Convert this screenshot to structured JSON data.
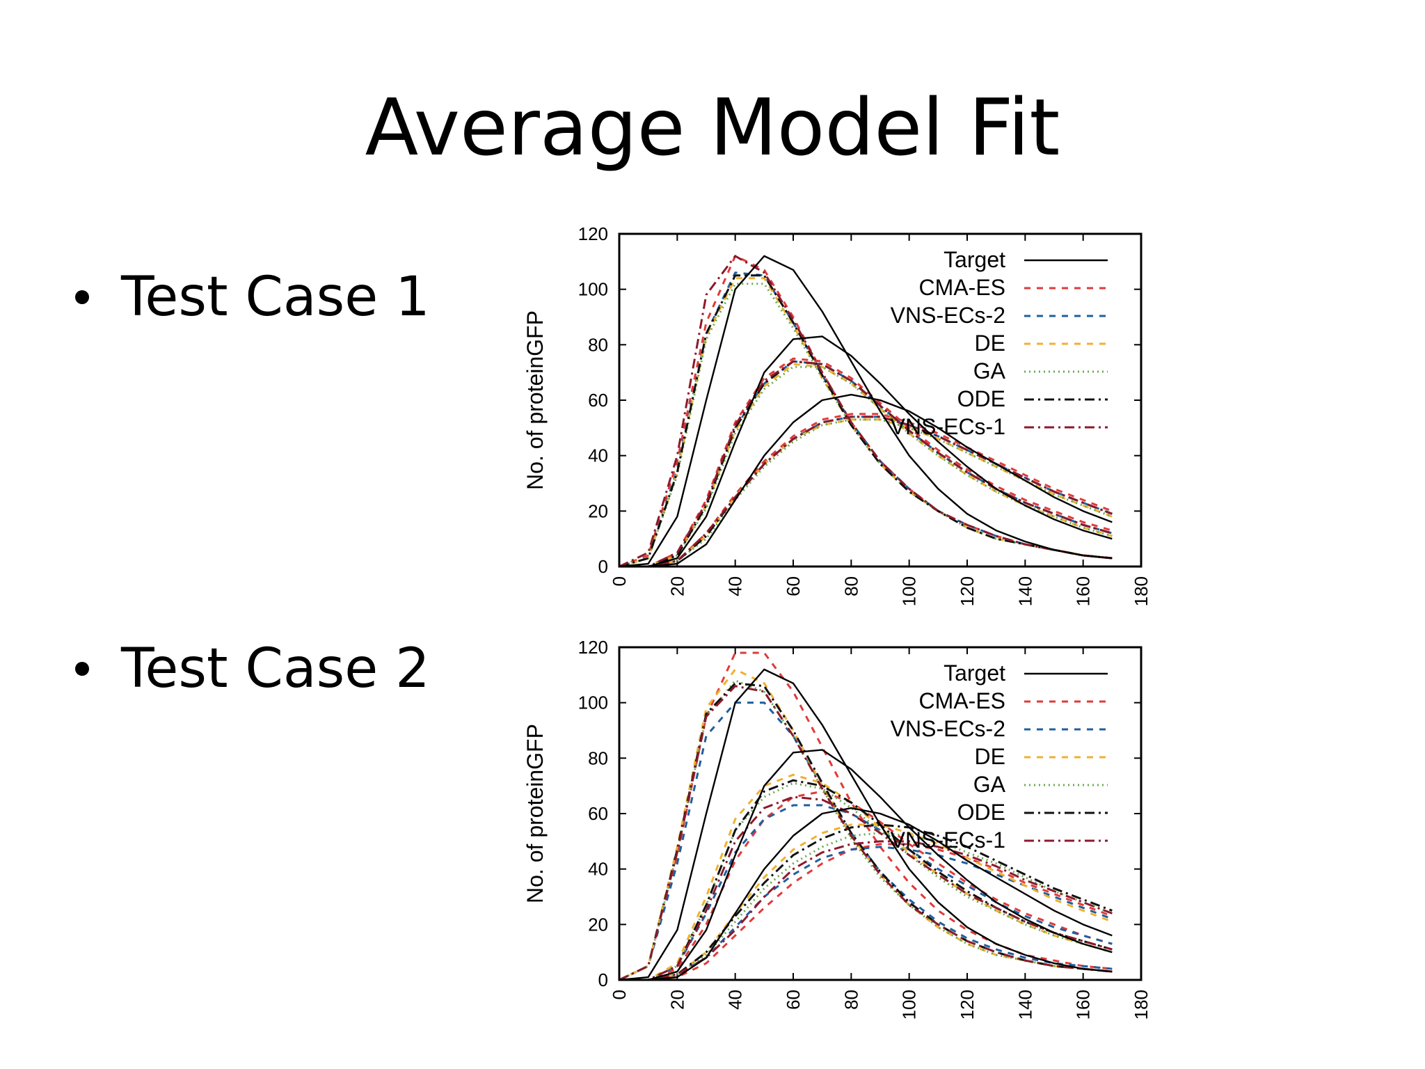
{
  "slide": {
    "title": "Average Model Fit",
    "bullets": [
      "Test Case 1",
      "Test Case 2"
    ]
  },
  "series_styles": [
    {
      "name": "Target",
      "color": "#000000",
      "dash": "solid",
      "width": 2.4
    },
    {
      "name": "CMA-ES",
      "color": "#e03a3a",
      "dash": "dashed",
      "width": 3
    },
    {
      "name": "VNS-ECs-2",
      "color": "#1f5f9f",
      "dash": "dashed",
      "width": 3
    },
    {
      "name": "DE",
      "color": "#f0b030",
      "dash": "dashed",
      "width": 3
    },
    {
      "name": "GA",
      "color": "#6aa84f",
      "dash": "dotted",
      "width": 3
    },
    {
      "name": "ODE",
      "color": "#111111",
      "dash": "dashdot",
      "width": 3
    },
    {
      "name": "VNS-ECs-1",
      "color": "#8b1a2b",
      "dash": "dashdot",
      "width": 3
    }
  ],
  "chart_data": [
    {
      "type": "line",
      "ylabel": "No. of proteinGFP",
      "xlabel": "",
      "xlim": [
        0,
        180
      ],
      "ylim": [
        0,
        120
      ],
      "xticks": [
        0,
        20,
        40,
        60,
        80,
        100,
        120,
        140,
        160,
        180
      ],
      "yticks": [
        0,
        20,
        40,
        60,
        80,
        100,
        120
      ],
      "legend_position": "top-right",
      "x": [
        0,
        10,
        20,
        30,
        40,
        50,
        60,
        70,
        80,
        90,
        100,
        110,
        120,
        130,
        140,
        150,
        160,
        170
      ],
      "series": [
        {
          "name": "Target",
          "curves": [
            [
              0,
              1,
              18,
              60,
              100,
              112,
              107,
              92,
              74,
              56,
              40,
              28,
              19,
              13,
              9,
              6,
              4,
              3
            ],
            [
              0,
              0,
              3,
              18,
              45,
              70,
              82,
              83,
              76,
              66,
              55,
              45,
              36,
              28,
              22,
              17,
              13,
              10
            ],
            [
              0,
              0,
              1,
              8,
              24,
              40,
              52,
              60,
              62,
              60,
              56,
              50,
              43,
              37,
              31,
              25,
              20,
              16
            ]
          ]
        },
        {
          "name": "CMA-ES",
          "curves": [
            [
              0,
              4,
              38,
              88,
              112,
              107,
              90,
              70,
              52,
              38,
              28,
              20,
              15,
              11,
              8,
              6,
              4,
              3
            ],
            [
              0,
              0,
              5,
              24,
              52,
              68,
              75,
              74,
              68,
              59,
              50,
              42,
              35,
              29,
              24,
              20,
              16,
              13
            ],
            [
              0,
              0,
              2,
              12,
              26,
              38,
              47,
              53,
              55,
              55,
              52,
              48,
              43,
              38,
              33,
              28,
              24,
              20
            ]
          ]
        },
        {
          "name": "VNS-ECs-2",
          "curves": [
            [
              0,
              3,
              35,
              84,
              106,
              105,
              88,
              69,
              52,
              38,
              28,
              20,
              15,
              11,
              8,
              6,
              4,
              3
            ],
            [
              0,
              0,
              4,
              22,
              50,
              66,
              74,
              73,
              67,
              58,
              49,
              41,
              34,
              28,
              23,
              19,
              15,
              12
            ],
            [
              0,
              0,
              2,
              11,
              25,
              37,
              46,
              52,
              54,
              54,
              51,
              47,
              42,
              37,
              32,
              27,
              23,
              19
            ]
          ]
        },
        {
          "name": "DE",
          "curves": [
            [
              0,
              3,
              34,
              83,
              104,
              104,
              87,
              68,
              51,
              37,
              27,
              20,
              14,
              10,
              8,
              6,
              4,
              3
            ],
            [
              0,
              0,
              4,
              22,
              49,
              65,
              73,
              72,
              66,
              57,
              48,
              40,
              33,
              27,
              22,
              18,
              14,
              11
            ],
            [
              0,
              0,
              2,
              11,
              25,
              37,
              46,
              51,
              53,
              53,
              50,
              46,
              41,
              36,
              31,
              26,
              22,
              18
            ]
          ]
        },
        {
          "name": "GA",
          "curves": [
            [
              0,
              3,
              33,
              82,
              102,
              102,
              86,
              68,
              51,
              37,
              27,
              20,
              14,
              10,
              8,
              6,
              4,
              3
            ],
            [
              0,
              0,
              4,
              21,
              48,
              64,
              72,
              72,
              66,
              57,
              48,
              40,
              33,
              27,
              22,
              18,
              14,
              11
            ],
            [
              0,
              0,
              2,
              10,
              24,
              36,
              45,
              51,
              53,
              53,
              50,
              46,
              41,
              36,
              31,
              26,
              22,
              18
            ]
          ]
        },
        {
          "name": "ODE",
          "curves": [
            [
              0,
              3,
              34,
              84,
              105,
              105,
              88,
              69,
              51,
              37,
              27,
              20,
              14,
              10,
              8,
              6,
              4,
              3
            ],
            [
              0,
              0,
              4,
              22,
              50,
              66,
              74,
              73,
              67,
              58,
              49,
              41,
              34,
              28,
              23,
              19,
              15,
              12
            ],
            [
              0,
              0,
              2,
              11,
              25,
              37,
              46,
              52,
              54,
              54,
              51,
              47,
              42,
              37,
              32,
              27,
              23,
              19
            ]
          ]
        },
        {
          "name": "VNS-ECs-1",
          "curves": [
            [
              0,
              5,
              40,
              98,
              112,
              106,
              89,
              70,
              52,
              38,
              28,
              20,
              15,
              11,
              8,
              6,
              4,
              3
            ],
            [
              0,
              0,
              5,
              23,
              51,
              67,
              74,
              73,
              67,
              58,
              49,
              41,
              34,
              28,
              23,
              19,
              15,
              12
            ],
            [
              0,
              0,
              2,
              12,
              25,
              37,
              46,
              52,
              54,
              54,
              51,
              47,
              42,
              37,
              32,
              27,
              23,
              19
            ]
          ]
        }
      ]
    },
    {
      "type": "line",
      "ylabel": "No. of proteinGFP",
      "xlabel": "",
      "xlim": [
        0,
        180
      ],
      "ylim": [
        0,
        120
      ],
      "xticks": [
        0,
        20,
        40,
        60,
        80,
        100,
        120,
        140,
        160,
        180
      ],
      "yticks": [
        0,
        20,
        40,
        60,
        80,
        100,
        120
      ],
      "legend_position": "top-right",
      "x": [
        0,
        10,
        20,
        30,
        40,
        50,
        60,
        70,
        80,
        90,
        100,
        110,
        120,
        130,
        140,
        150,
        160,
        170
      ],
      "series": [
        {
          "name": "Target",
          "curves": [
            [
              0,
              1,
              18,
              60,
              100,
              112,
              107,
              92,
              74,
              56,
              40,
              28,
              19,
              13,
              9,
              6,
              4,
              3
            ],
            [
              0,
              0,
              3,
              18,
              45,
              70,
              82,
              83,
              76,
              66,
              55,
              45,
              36,
              28,
              22,
              17,
              13,
              10
            ],
            [
              0,
              0,
              1,
              8,
              24,
              40,
              52,
              60,
              62,
              60,
              56,
              50,
              43,
              37,
              31,
              25,
              20,
              16
            ]
          ]
        },
        {
          "name": "CMA-ES",
          "curves": [
            [
              0,
              5,
              45,
              95,
              118,
              118,
              104,
              84,
              64,
              48,
              35,
              25,
              18,
              13,
              9,
              7,
              5,
              4
            ],
            [
              0,
              0,
              4,
              20,
              43,
              58,
              66,
              68,
              64,
              57,
              49,
              42,
              35,
              29,
              24,
              20,
              16,
              13
            ],
            [
              0,
              0,
              1,
              6,
              16,
              26,
              35,
              42,
              47,
              49,
              49,
              47,
              44,
              40,
              35,
              31,
              27,
              23
            ]
          ]
        },
        {
          "name": "VNS-ECs-2",
          "curves": [
            [
              0,
              5,
              42,
              88,
              100,
              100,
              88,
              70,
              53,
              39,
              29,
              21,
              15,
              11,
              8,
              6,
              5,
              4
            ],
            [
              0,
              0,
              5,
              24,
              46,
              58,
              63,
              63,
              60,
              54,
              47,
              40,
              34,
              28,
              23,
              19,
              16,
              13
            ],
            [
              0,
              0,
              2,
              8,
              19,
              30,
              38,
              44,
              47,
              48,
              47,
              45,
              42,
              38,
              34,
              30,
              26,
              22
            ]
          ]
        },
        {
          "name": "DE",
          "curves": [
            [
              0,
              5,
              48,
              98,
              112,
              107,
              90,
              70,
              52,
              38,
              27,
              19,
              13,
              9,
              7,
              5,
              4,
              3
            ],
            [
              0,
              0,
              6,
              30,
              58,
              70,
              74,
              71,
              64,
              55,
              46,
              38,
              31,
              25,
              20,
              16,
              13,
              10
            ],
            [
              0,
              0,
              2,
              10,
              24,
              37,
              47,
              53,
              56,
              56,
              53,
              49,
              44,
              39,
              34,
              29,
              25,
              21
            ]
          ]
        },
        {
          "name": "GA",
          "curves": [
            [
              0,
              5,
              46,
              95,
              108,
              104,
              88,
              69,
              51,
              37,
              27,
              19,
              13,
              9,
              7,
              5,
              4,
              3
            ],
            [
              0,
              0,
              5,
              27,
              54,
              66,
              71,
              69,
              62,
              54,
              45,
              37,
              30,
              25,
              20,
              16,
              13,
              10
            ],
            [
              0,
              0,
              2,
              9,
              21,
              33,
              42,
              48,
              52,
              53,
              52,
              50,
              46,
              42,
              37,
              32,
              28,
              24
            ]
          ]
        },
        {
          "name": "ODE",
          "curves": [
            [
              0,
              5,
              47,
              96,
              107,
              106,
              90,
              71,
              53,
              39,
              28,
              20,
              14,
              10,
              7,
              5,
              4,
              3
            ],
            [
              0,
              0,
              5,
              27,
              54,
              68,
              72,
              70,
              64,
              56,
              47,
              39,
              32,
              26,
              21,
              17,
              14,
              11
            ],
            [
              0,
              0,
              2,
              10,
              23,
              35,
              45,
              51,
              55,
              56,
              55,
              52,
              48,
              43,
              38,
              33,
              29,
              25
            ]
          ]
        },
        {
          "name": "VNS-ECs-1",
          "curves": [
            [
              0,
              5,
              46,
              95,
              106,
              104,
              88,
              69,
              52,
              38,
              27,
              20,
              14,
              10,
              7,
              5,
              4,
              3
            ],
            [
              0,
              0,
              5,
              25,
              50,
              62,
              66,
              65,
              60,
              53,
              45,
              38,
              31,
              26,
              21,
              17,
              14,
              11
            ],
            [
              0,
              0,
              2,
              8,
              18,
              30,
              40,
              46,
              49,
              50,
              50,
              48,
              45,
              41,
              36,
              32,
              28,
              24
            ]
          ]
        }
      ]
    }
  ]
}
